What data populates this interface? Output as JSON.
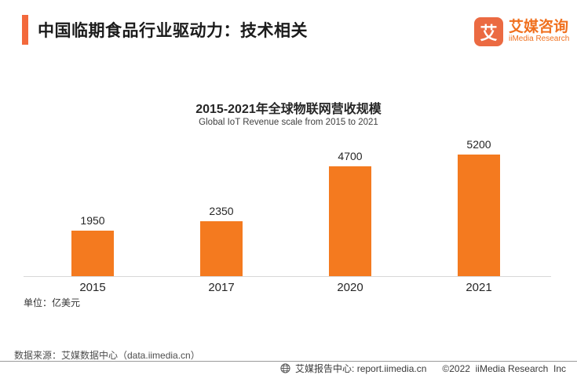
{
  "header": {
    "title": "中国临期食品行业驱动力：技术相关",
    "accent_color": "#F3693C",
    "logo": {
      "icon_char": "艾",
      "name_cn": "艾媒咨询",
      "name_en": "iiMedia Research"
    }
  },
  "chart": {
    "title": "2015-2021年全球物联网营收规模",
    "subtitle": "Global IoT Revenue scale from 2015 to 2021",
    "unit_label": "单位：亿美元",
    "bar_color": "#F47A1F"
  },
  "chart_data": {
    "type": "bar",
    "title": "2015-2021年全球物联网营收规模",
    "subtitle": "Global IoT Revenue scale from 2015 to 2021",
    "categories": [
      "2015",
      "2017",
      "2020",
      "2021"
    ],
    "values": [
      1950,
      2350,
      4700,
      5200
    ],
    "unit": "亿美元",
    "ylim": [
      0,
      5600
    ],
    "grid": false,
    "data_labels": true,
    "legend": "none",
    "bar_color": "#F47A1F"
  },
  "footer": {
    "source_note": "数据来源：艾媒数据中心（data.iimedia.cn）",
    "report_center": "艾媒报告中心: report.iimedia.cn",
    "copyright": "©2022  iiMedia Research  Inc"
  }
}
